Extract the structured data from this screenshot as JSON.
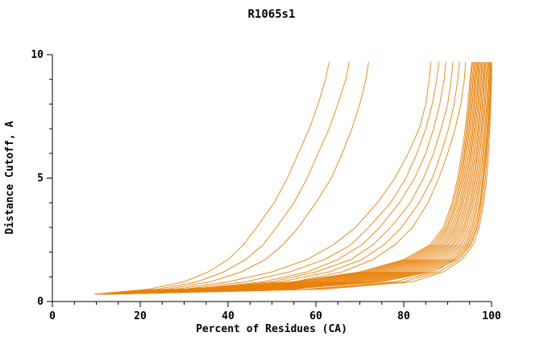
{
  "chart_data": {
    "type": "line",
    "title": "R1065s1",
    "xlabel": "Percent of Residues (CA)",
    "ylabel": "Distance Cutoff, A",
    "xlim": [
      0,
      100
    ],
    "ylim": [
      0,
      10
    ],
    "x_major_ticks": [
      0,
      20,
      40,
      60,
      80,
      100
    ],
    "x_minor_step": 5,
    "y_major_ticks": [
      0,
      5,
      10
    ],
    "y_minor_step": 1,
    "grid": false,
    "legend": "none",
    "line_color": "#e8820c",
    "axis_color": "#000000",
    "background_color": "#ffffff",
    "y_levels": [
      0.3,
      0.5,
      0.8,
      1.2,
      1.7,
      2.3,
      3,
      4,
      5,
      6,
      7,
      8,
      9,
      9.7
    ],
    "series": [
      [
        9.5,
        30.0,
        55.0,
        70.0,
        80.0,
        86.0,
        89.0,
        91.0,
        92.3,
        93.2,
        94.0,
        94.6,
        95.1,
        95.5
      ],
      [
        9.7,
        31.2,
        56.0,
        70.8,
        80.6,
        86.5,
        89.4,
        91.3,
        92.6,
        93.5,
        94.3,
        94.9,
        95.3,
        95.7
      ],
      [
        9.9,
        32.4,
        57.0,
        71.6,
        81.2,
        86.9,
        89.8,
        91.7,
        92.9,
        93.8,
        94.5,
        95.1,
        95.6,
        96.0
      ],
      [
        10.1,
        33.6,
        58.2,
        72.4,
        81.8,
        87.4,
        90.1,
        92.0,
        93.2,
        94.0,
        94.8,
        95.4,
        95.8,
        96.2
      ],
      [
        10.3,
        34.8,
        59.0,
        73.2,
        82.4,
        87.8,
        90.5,
        92.3,
        93.5,
        94.3,
        95.0,
        95.6,
        96.1,
        96.4
      ],
      [
        10.5,
        36.0,
        60.0,
        74.0,
        83.0,
        88.3,
        90.9,
        92.7,
        93.8,
        94.6,
        95.3,
        95.9,
        96.3,
        96.7
      ],
      [
        10.7,
        37.2,
        61.3,
        74.8,
        83.6,
        88.7,
        91.3,
        93.0,
        94.1,
        94.9,
        95.6,
        96.1,
        96.5,
        96.9
      ],
      [
        10.9,
        38.4,
        62.0,
        75.6,
        84.2,
        89.2,
        91.7,
        93.3,
        94.4,
        95.2,
        95.8,
        96.4,
        96.8,
        97.1
      ],
      [
        11.1,
        39.6,
        63.0,
        76.4,
        84.8,
        89.6,
        92.0,
        93.6,
        94.7,
        95.4,
        96.1,
        96.6,
        97.0,
        97.3
      ],
      [
        11.3,
        40.8,
        64.2,
        77.2,
        85.4,
        90.1,
        92.4,
        94.0,
        95.0,
        95.7,
        96.3,
        96.9,
        97.2,
        97.6
      ],
      [
        11.5,
        42.0,
        65.0,
        78.0,
        86.0,
        90.5,
        92.8,
        94.3,
        95.3,
        96.0,
        96.6,
        97.1,
        97.5,
        97.8
      ],
      [
        11.7,
        43.2,
        66.0,
        78.8,
        86.6,
        91.0,
        93.2,
        94.6,
        95.6,
        96.3,
        96.9,
        97.4,
        97.7,
        98.0
      ],
      [
        11.9,
        44.4,
        67.1,
        79.6,
        87.2,
        91.4,
        93.6,
        95.0,
        95.9,
        96.6,
        97.1,
        97.6,
        98.0,
        98.3
      ],
      [
        12.1,
        45.6,
        68.0,
        80.4,
        87.8,
        91.9,
        93.9,
        95.3,
        96.2,
        96.8,
        97.4,
        97.9,
        98.2,
        98.5
      ],
      [
        12.3,
        46.8,
        69.0,
        81.2,
        88.4,
        92.3,
        94.3,
        95.6,
        96.5,
        97.1,
        97.7,
        98.1,
        98.4,
        98.7
      ],
      [
        12.5,
        48.0,
        70.0,
        82.0,
        89.0,
        92.8,
        94.7,
        95.9,
        96.8,
        97.4,
        97.9,
        98.4,
        98.7,
        99.0
      ],
      [
        12.7,
        49.2,
        71.2,
        82.8,
        89.6,
        93.2,
        95.1,
        96.3,
        97.1,
        97.7,
        98.2,
        98.6,
        98.9,
        99.2
      ],
      [
        12.9,
        50.4,
        72.0,
        83.6,
        90.2,
        93.7,
        95.5,
        96.6,
        97.4,
        98.0,
        98.5,
        98.9,
        99.2,
        99.4
      ],
      [
        13.1,
        51.6,
        73.0,
        84.4,
        90.8,
        94.1,
        95.8,
        96.9,
        97.7,
        98.2,
        98.7,
        99.1,
        99.4,
        99.6
      ],
      [
        13.3,
        52.8,
        74.0,
        85.2,
        91.4,
        94.6,
        96.2,
        97.3,
        98.0,
        98.5,
        99.0,
        99.4,
        99.6,
        99.8
      ],
      [
        13.5,
        54.0,
        75.0,
        86.0,
        92.0,
        95.0,
        96.6,
        97.6,
        98.3,
        98.8,
        99.2,
        99.6,
        99.8,
        100.0
      ],
      [
        13.7,
        60.0,
        80.0,
        88.0,
        92.5,
        95.3,
        96.8,
        97.9,
        98.6,
        99.0,
        99.4,
        99.7,
        99.9,
        100.0
      ],
      [
        14.0,
        58.0,
        78.0,
        87.0,
        91.5,
        94.5,
        96.2,
        97.4,
        98.1,
        98.6,
        99.0,
        99.3,
        99.6,
        99.8
      ],
      [
        13.8,
        62.0,
        82.0,
        89.0,
        93.2,
        95.8,
        97.2,
        98.2,
        98.9,
        99.3,
        99.6,
        99.8,
        100.0,
        100.0
      ],
      [
        10.5,
        28.0,
        40.0,
        50.0,
        58.0,
        64.0,
        69.0,
        74.0,
        78.0,
        81.0,
        83.5,
        85.0,
        85.8,
        86.2
      ],
      [
        11.0,
        30.0,
        44.0,
        54.0,
        62.0,
        68.0,
        72.0,
        77.0,
        80.5,
        83.0,
        85.0,
        86.5,
        87.5,
        88.0
      ],
      [
        11.5,
        32.0,
        48.0,
        58.0,
        65.0,
        70.5,
        74.5,
        79.0,
        82.5,
        85.0,
        86.8,
        88.2,
        89.2,
        89.6
      ],
      [
        12.0,
        34.0,
        50.0,
        60.0,
        68.0,
        73.0,
        77.0,
        81.5,
        84.5,
        86.8,
        88.5,
        90.0,
        90.8,
        91.2
      ],
      [
        12.5,
        36.0,
        52.0,
        63.0,
        70.5,
        75.5,
        79.5,
        83.5,
        86.5,
        88.5,
        90.2,
        91.5,
        92.3,
        92.7
      ],
      [
        13.0,
        38.0,
        55.0,
        66.0,
        73.0,
        78.0,
        82.0,
        85.5,
        88.0,
        90.0,
        91.7,
        93.0,
        93.8,
        94.1
      ],
      [
        9.8,
        22.0,
        30.0,
        35.5,
        40.0,
        43.5,
        46.5,
        50.5,
        53.5,
        56.0,
        58.5,
        60.5,
        62.2,
        63.0
      ],
      [
        10.2,
        24.0,
        33.0,
        39.0,
        44.0,
        48.0,
        51.0,
        55.0,
        58.0,
        60.5,
        63.0,
        65.0,
        66.8,
        67.6
      ],
      [
        10.6,
        26.0,
        36.0,
        43.0,
        48.5,
        52.5,
        56.0,
        60.0,
        63.5,
        66.0,
        68.2,
        70.0,
        71.4,
        72.0
      ]
    ]
  }
}
